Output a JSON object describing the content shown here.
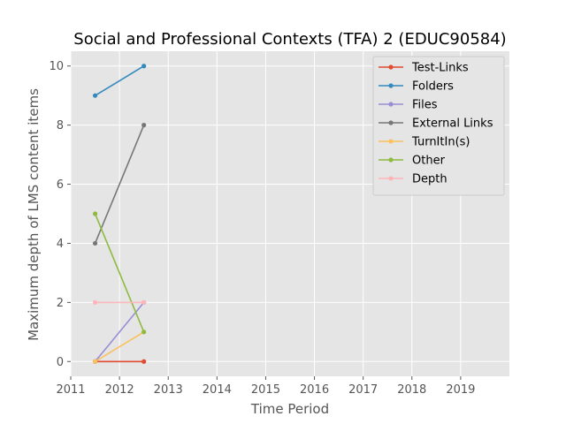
{
  "chart_data": {
    "type": "line",
    "title": "Social and Professional Contexts (TFA) 2 (EDUC90584)",
    "xlabel": "Time Period",
    "ylabel": "Maximum depth of LMS content items",
    "xlim": [
      2011,
      2020
    ],
    "ylim": [
      -0.5,
      10.5
    ],
    "x_ticks": [
      "2011",
      "2012",
      "2013",
      "2014",
      "2015",
      "2016",
      "2017",
      "2018",
      "2019"
    ],
    "y_ticks": [
      "0",
      "2",
      "4",
      "6",
      "8",
      "10"
    ],
    "x": [
      2011.5,
      2012.5
    ],
    "grid": true,
    "legend_position": "top-right",
    "series": [
      {
        "name": "Test-Links",
        "values": [
          0,
          0
        ],
        "color": "#e24a33"
      },
      {
        "name": "Folders",
        "values": [
          9,
          10
        ],
        "color": "#348abd"
      },
      {
        "name": "Files",
        "values": [
          0,
          2
        ],
        "color": "#988ed5"
      },
      {
        "name": "External Links",
        "values": [
          4,
          8
        ],
        "color": "#777777"
      },
      {
        "name": "TurnItIn(s)",
        "values": [
          0,
          1
        ],
        "color": "#fbc15e"
      },
      {
        "name": "Other",
        "values": [
          5,
          1
        ],
        "color": "#8eba42"
      },
      {
        "name": "Depth",
        "values": [
          2,
          2
        ],
        "color": "#ffb5b8"
      }
    ],
    "plot_background": "#e5e5e5",
    "grid_color": "#ffffff"
  }
}
